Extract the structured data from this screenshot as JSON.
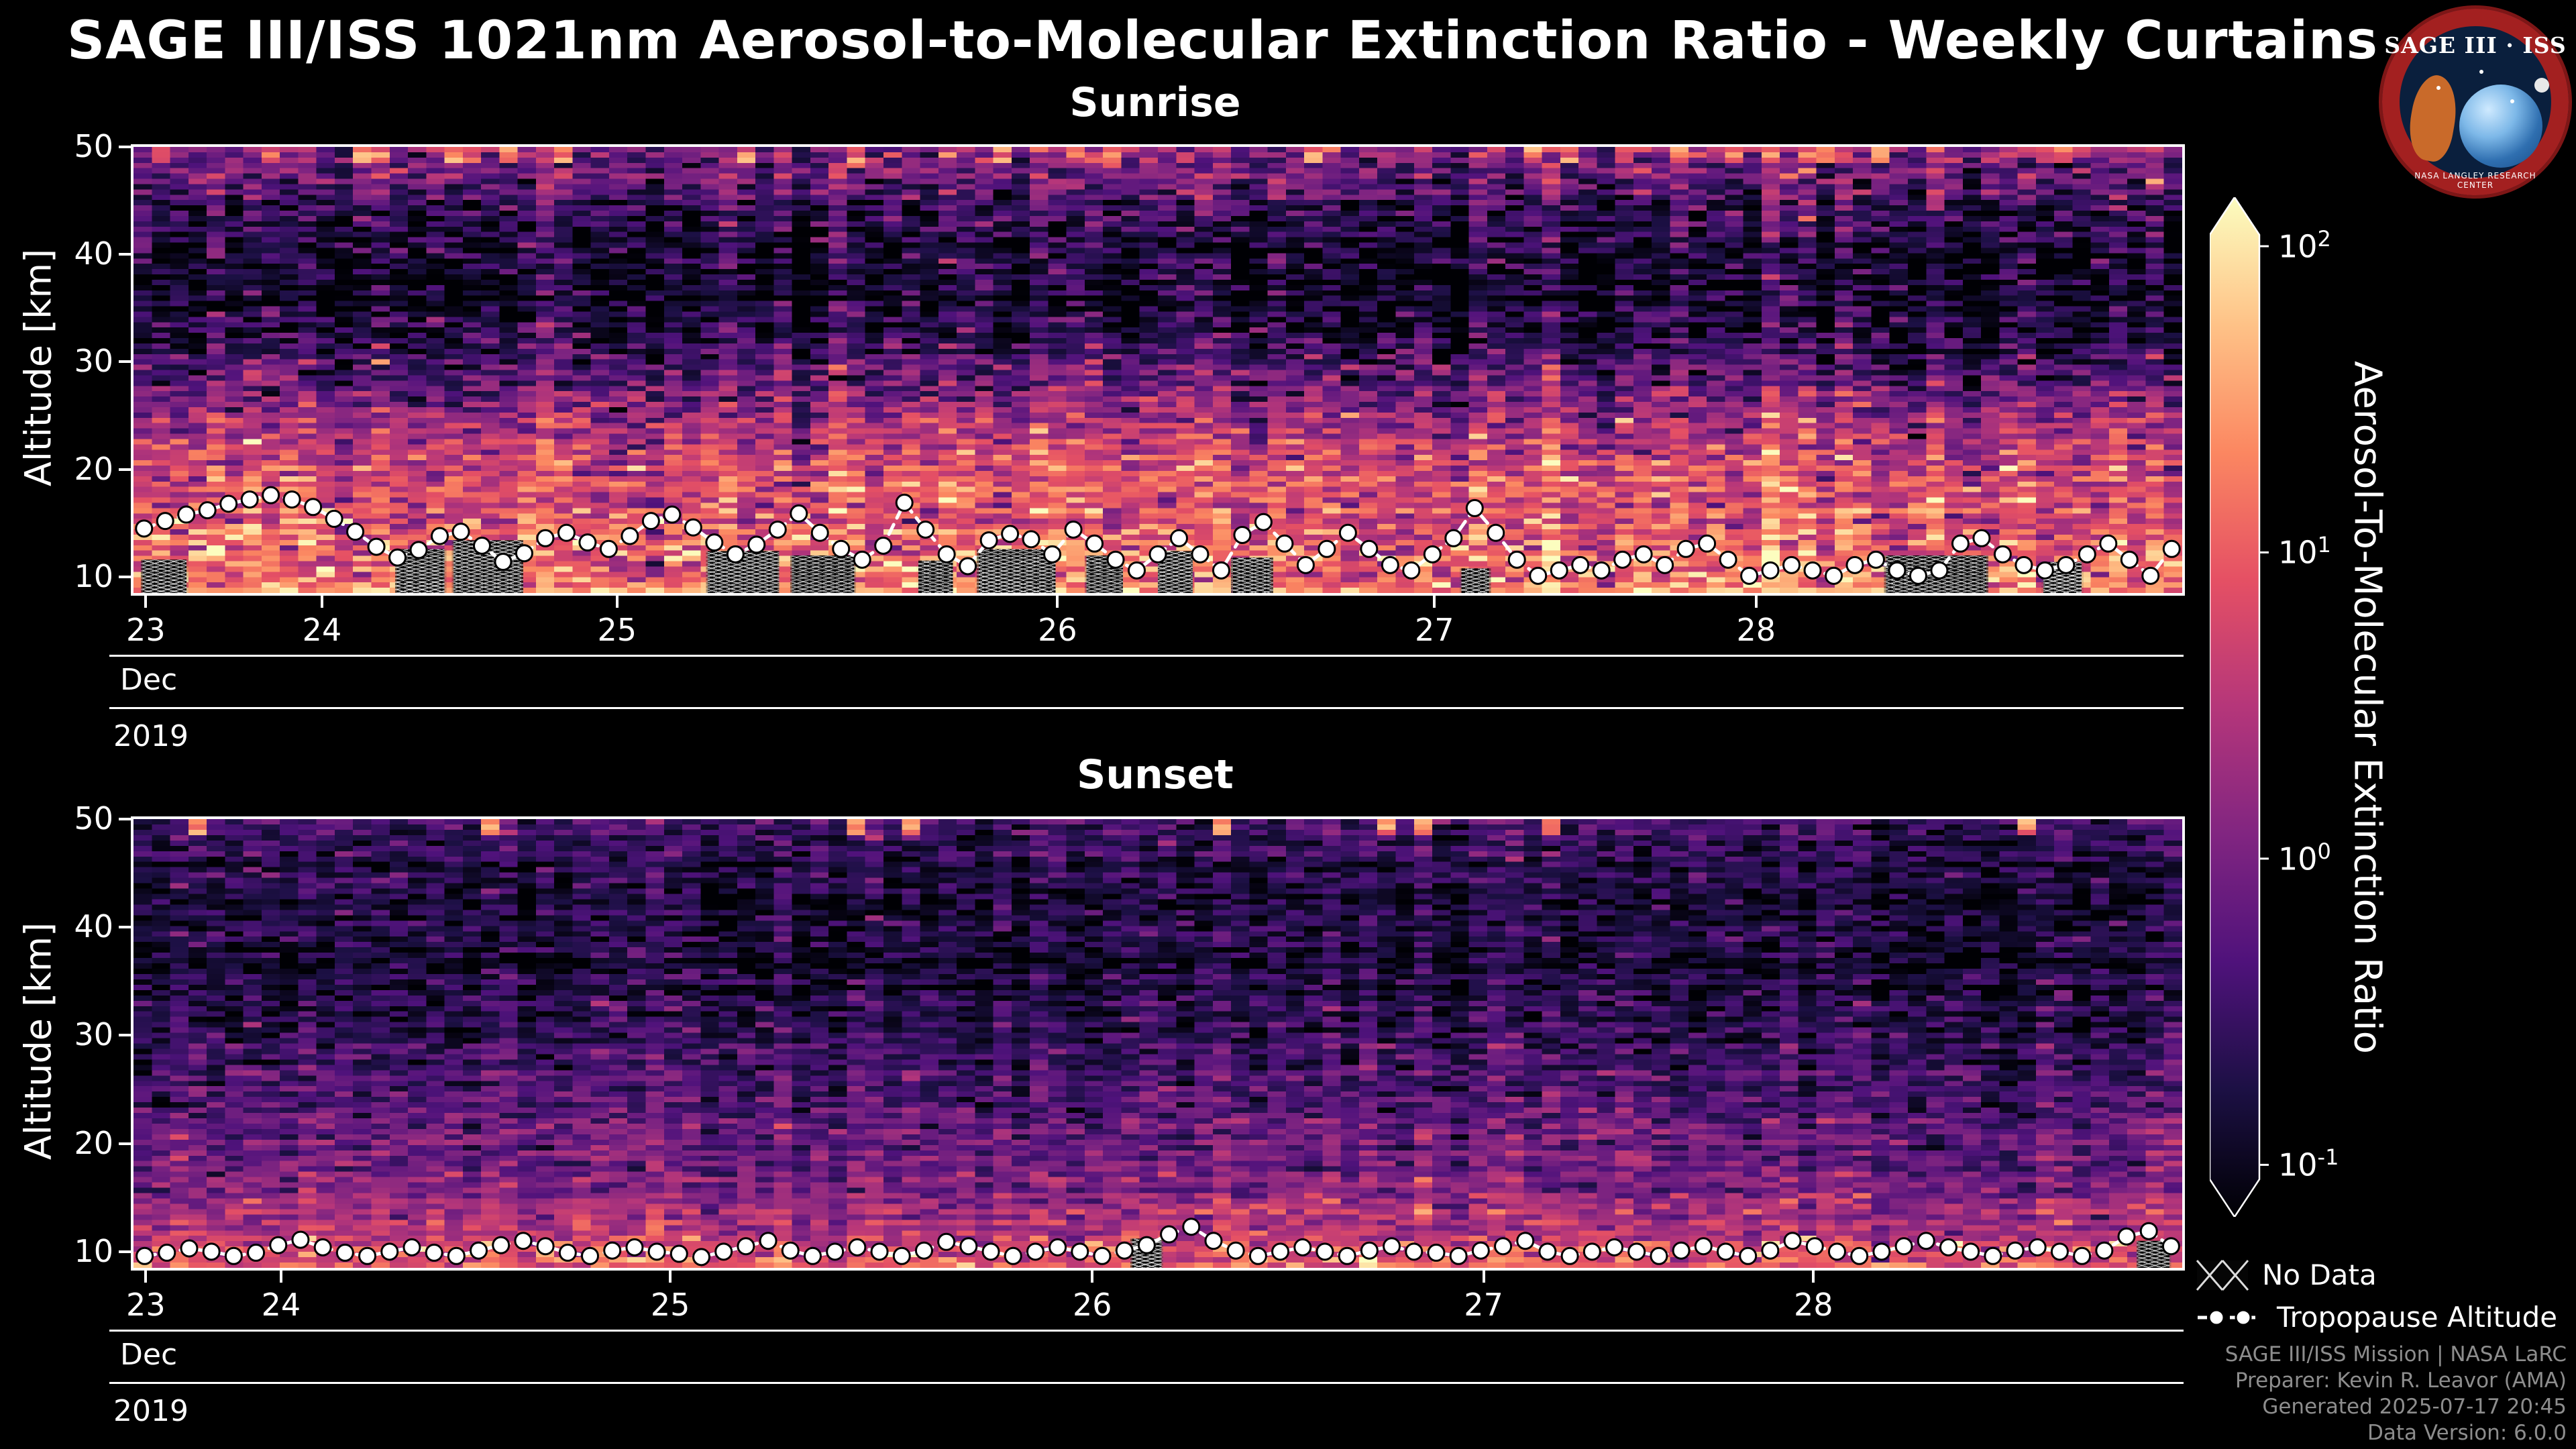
{
  "header": {
    "title": "SAGE III/ISS 1021nm Aerosol-to-Molecular Extinction Ratio - Weekly Curtains"
  },
  "logo": {
    "title": "SAGE III · ISS",
    "ring_text": "NASA LANGLEY RESEARCH CENTER"
  },
  "chart_data": {
    "type": "heatmap",
    "suptitle": "SAGE III/ISS 1021nm Aerosol-to-Molecular Extinction Ratio - Weekly Curtains",
    "value_scale": "log10",
    "value_domain_log10": [
      -1.17,
      2.16
    ],
    "colormap": {
      "name": "magma",
      "anchors": [
        [
          0,
          "#000004"
        ],
        [
          0.125,
          "#1c1044"
        ],
        [
          0.25,
          "#4f127b"
        ],
        [
          0.375,
          "#812581"
        ],
        [
          0.5,
          "#b5367a"
        ],
        [
          0.625,
          "#e55064"
        ],
        [
          0.75,
          "#fb8761"
        ],
        [
          0.875,
          "#fec287"
        ],
        [
          1,
          "#fcfdbf"
        ]
      ]
    },
    "colorbar": {
      "label": "Aerosol-To-Molecular Extinction Ratio",
      "tick_base": "10",
      "tick_exponents": [
        2,
        1,
        0,
        -1
      ]
    },
    "legend": {
      "no_data_label": "No Data",
      "tropopause_label": "Tropopause Altitude"
    },
    "panels": [
      {
        "title": "Sunrise",
        "ylabel": "Altitude [km]",
        "yticks": [
          10,
          20,
          30,
          40,
          50
        ],
        "ylim_km": [
          8.5,
          50
        ],
        "xticks": [
          {
            "label": "23",
            "f": 0.006
          },
          {
            "label": "24",
            "f": 0.092
          },
          {
            "label": "25",
            "f": 0.236
          },
          {
            "label": "26",
            "f": 0.451
          },
          {
            "label": "27",
            "f": 0.635
          },
          {
            "label": "28",
            "f": 0.792
          }
        ],
        "month_label": "Dec",
        "year_label": "2019",
        "seed": 20191223,
        "noise_std": 0.42,
        "column_noise_std": 0.22,
        "row_noise_std": 0.12,
        "top_streak_prob": 0.2,
        "cloud_prob": 0.16,
        "profile_km_log10": [
          [
            8.5,
            1.2
          ],
          [
            10,
            1.05
          ],
          [
            13,
            0.95
          ],
          [
            16,
            0.9
          ],
          [
            20,
            0.8
          ],
          [
            24,
            0.45
          ],
          [
            28,
            -0.15
          ],
          [
            32,
            -0.65
          ],
          [
            36,
            -0.95
          ],
          [
            40,
            -0.85
          ],
          [
            44,
            -0.55
          ],
          [
            47,
            -0.2
          ],
          [
            50,
            0.1
          ]
        ],
        "tropopause_km": [
          14.5,
          15.2,
          15.8,
          16.2,
          16.8,
          17.2,
          17.6,
          17.2,
          16.5,
          15.4,
          14.2,
          12.8,
          11.8,
          12.5,
          13.8,
          14.2,
          12.9,
          11.4,
          12.2,
          13.6,
          14.1,
          13.2,
          12.6,
          13.8,
          15.2,
          15.8,
          14.6,
          13.2,
          12.1,
          13.0,
          14.4,
          15.9,
          14.1,
          12.6,
          11.6,
          12.9,
          16.9,
          14.4,
          12.1,
          11.0,
          13.4,
          14.0,
          13.5,
          12.1,
          14.4,
          13.1,
          11.6,
          10.6,
          12.1,
          13.6,
          12.1,
          10.6,
          13.9,
          15.1,
          13.1,
          11.1,
          12.6,
          14.1,
          12.6,
          11.1,
          10.6,
          12.1,
          13.6,
          16.4,
          14.1,
          11.6,
          10.1,
          10.6,
          11.1,
          10.6,
          11.6,
          12.1,
          11.1,
          12.6,
          13.1,
          11.6,
          10.1,
          10.6,
          11.1,
          10.6,
          10.1,
          11.1,
          11.6,
          10.6,
          10.1,
          10.6,
          13.1,
          13.6,
          12.1,
          11.1,
          10.6,
          11.1,
          12.1,
          13.1,
          11.6,
          10.1,
          12.6
        ],
        "no_data_spans": [
          [
            0.004,
            0.026,
            8.5,
            11.6
          ],
          [
            0.128,
            0.152,
            8.5,
            12.6
          ],
          [
            0.156,
            0.19,
            8.5,
            13.4
          ],
          [
            0.28,
            0.315,
            8.5,
            12.4
          ],
          [
            0.321,
            0.352,
            8.5,
            12.0
          ],
          [
            0.383,
            0.4,
            8.5,
            11.5
          ],
          [
            0.412,
            0.45,
            8.5,
            12.6
          ],
          [
            0.465,
            0.483,
            8.5,
            12.0
          ],
          [
            0.5,
            0.517,
            8.5,
            12.4
          ],
          [
            0.536,
            0.556,
            8.5,
            11.8
          ],
          [
            0.648,
            0.662,
            8.5,
            10.8
          ],
          [
            0.855,
            0.905,
            8.5,
            12.0
          ],
          [
            0.932,
            0.951,
            8.5,
            11.4
          ]
        ]
      },
      {
        "title": "Sunset",
        "ylabel": "Altitude [km]",
        "yticks": [
          10,
          20,
          30,
          40,
          50
        ],
        "ylim_km": [
          8.5,
          50
        ],
        "xticks": [
          {
            "label": "23",
            "f": 0.006
          },
          {
            "label": "24",
            "f": 0.072
          },
          {
            "label": "25",
            "f": 0.262
          },
          {
            "label": "26",
            "f": 0.468
          },
          {
            "label": "27",
            "f": 0.659
          },
          {
            "label": "28",
            "f": 0.82
          }
        ],
        "month_label": "Dec",
        "year_label": "2019",
        "seed": 20191224,
        "noise_std": 0.3,
        "column_noise_std": 0.12,
        "row_noise_std": 0.1,
        "top_streak_prob": 0.06,
        "cloud_prob": 0.08,
        "profile_km_log10": [
          [
            8.5,
            1.0
          ],
          [
            10,
            0.75
          ],
          [
            12,
            0.45
          ],
          [
            15,
            0.15
          ],
          [
            18,
            0.0
          ],
          [
            22,
            -0.2
          ],
          [
            26,
            -0.45
          ],
          [
            30,
            -0.62
          ],
          [
            34,
            -0.75
          ],
          [
            38,
            -0.8
          ],
          [
            42,
            -0.8
          ],
          [
            46,
            -0.7
          ],
          [
            50,
            -0.35
          ]
        ],
        "tropopause_km": [
          9.6,
          9.9,
          10.3,
          10.0,
          9.6,
          9.9,
          10.6,
          11.1,
          10.4,
          9.9,
          9.6,
          10.0,
          10.4,
          9.9,
          9.6,
          10.1,
          10.6,
          11.0,
          10.5,
          9.9,
          9.6,
          10.1,
          10.4,
          10.0,
          9.8,
          9.5,
          10.0,
          10.5,
          11.0,
          10.1,
          9.6,
          10.0,
          10.4,
          10.0,
          9.6,
          10.1,
          10.9,
          10.5,
          10.0,
          9.6,
          10.0,
          10.4,
          10.0,
          9.6,
          10.1,
          10.6,
          11.6,
          12.3,
          11.0,
          10.1,
          9.6,
          10.0,
          10.4,
          10.0,
          9.6,
          10.1,
          10.5,
          10.0,
          9.9,
          9.6,
          10.1,
          10.5,
          11.0,
          10.0,
          9.6,
          10.0,
          10.4,
          10.0,
          9.6,
          10.1,
          10.5,
          10.0,
          9.6,
          10.1,
          11.0,
          10.5,
          10.0,
          9.6,
          10.0,
          10.5,
          11.0,
          10.4,
          10.0,
          9.6,
          10.1,
          10.4,
          10.0,
          9.6,
          10.1,
          11.4,
          11.9,
          10.5
        ],
        "no_data_spans": [
          [
            0.487,
            0.502,
            8.5,
            11.2
          ],
          [
            0.978,
            0.994,
            8.5,
            11.0
          ]
        ]
      }
    ]
  },
  "credits": {
    "lines": [
      "SAGE III/ISS Mission | NASA LaRC",
      "Preparer: Kevin R. Leavor (AMA)",
      "Generated 2025-07-17 20:45",
      "Data Version: 6.0.0"
    ]
  }
}
